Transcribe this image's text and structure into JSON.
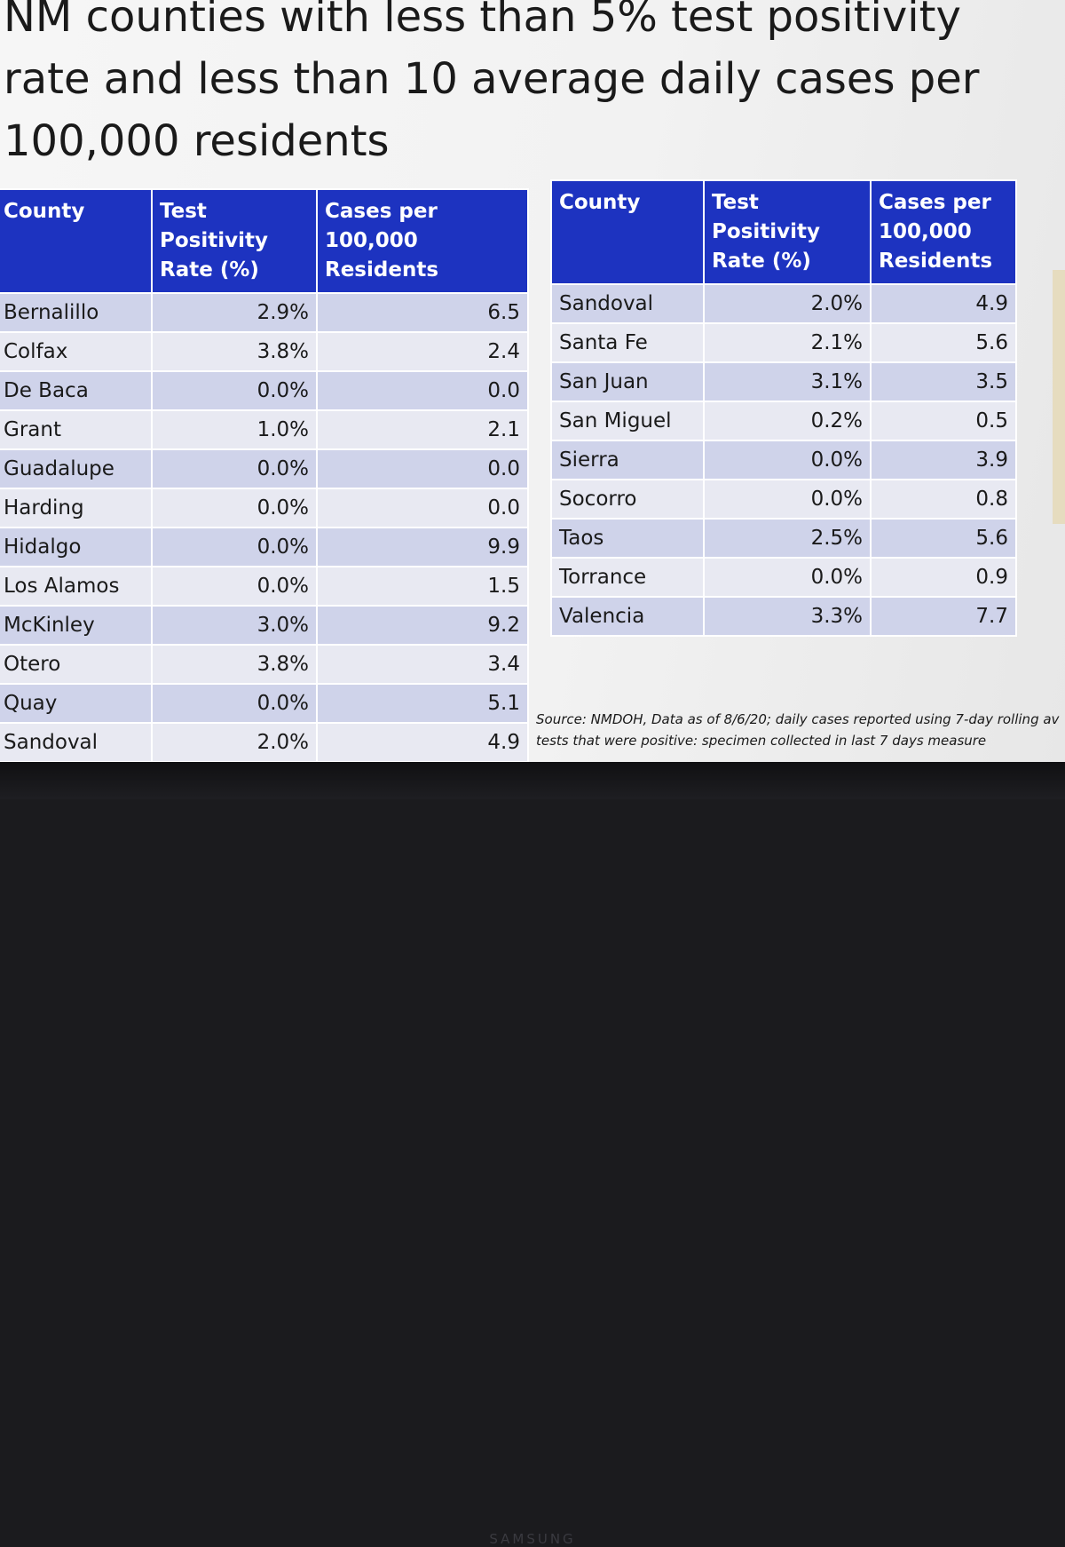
{
  "slide": {
    "title": "NM counties with less than 5% test positivity rate and less than 10 average daily cases per 100,000 residents",
    "source_line1": "Source: NMDOH, Data as of 8/6/20; daily cases reported using 7-day rolling av",
    "source_line2": "tests that were positive: specimen collected in last 7 days measure"
  },
  "left_table": {
    "headers": [
      "County",
      "Test Positivity Rate (%)",
      "Cases per 100,000 Residents"
    ],
    "rows": [
      [
        "Bernalillo",
        "2.9%",
        "6.5"
      ],
      [
        "Colfax",
        "3.8%",
        "2.4"
      ],
      [
        "De Baca",
        "0.0%",
        "0.0"
      ],
      [
        "Grant",
        "1.0%",
        "2.1"
      ],
      [
        "Guadalupe",
        "0.0%",
        "0.0"
      ],
      [
        "Harding",
        "0.0%",
        "0.0"
      ],
      [
        "Hidalgo",
        "0.0%",
        "9.9"
      ],
      [
        "Los Alamos",
        "0.0%",
        "1.5"
      ],
      [
        "McKinley",
        "3.0%",
        "9.2"
      ],
      [
        "Otero",
        "3.8%",
        "3.4"
      ],
      [
        "Quay",
        "0.0%",
        "5.1"
      ],
      [
        "Sandoval",
        "2.0%",
        "4.9"
      ]
    ]
  },
  "right_table": {
    "headers": [
      "County",
      "Test Positivity Rate (%)",
      "Cases per 100,000 Residents"
    ],
    "rows": [
      [
        "Sandoval",
        "2.0%",
        "4.9"
      ],
      [
        "Santa Fe",
        "2.1%",
        "5.6"
      ],
      [
        "San Juan",
        "3.1%",
        "3.5"
      ],
      [
        "San Miguel",
        "0.2%",
        "0.5"
      ],
      [
        "Sierra",
        "0.0%",
        "3.9"
      ],
      [
        "Socorro",
        "0.0%",
        "0.8"
      ],
      [
        "Taos",
        "2.5%",
        "5.6"
      ],
      [
        "Torrance",
        "0.0%",
        "0.9"
      ],
      [
        "Valencia",
        "3.3%",
        "7.7"
      ]
    ]
  },
  "monitor": {
    "brand": "SAMSUNG"
  }
}
